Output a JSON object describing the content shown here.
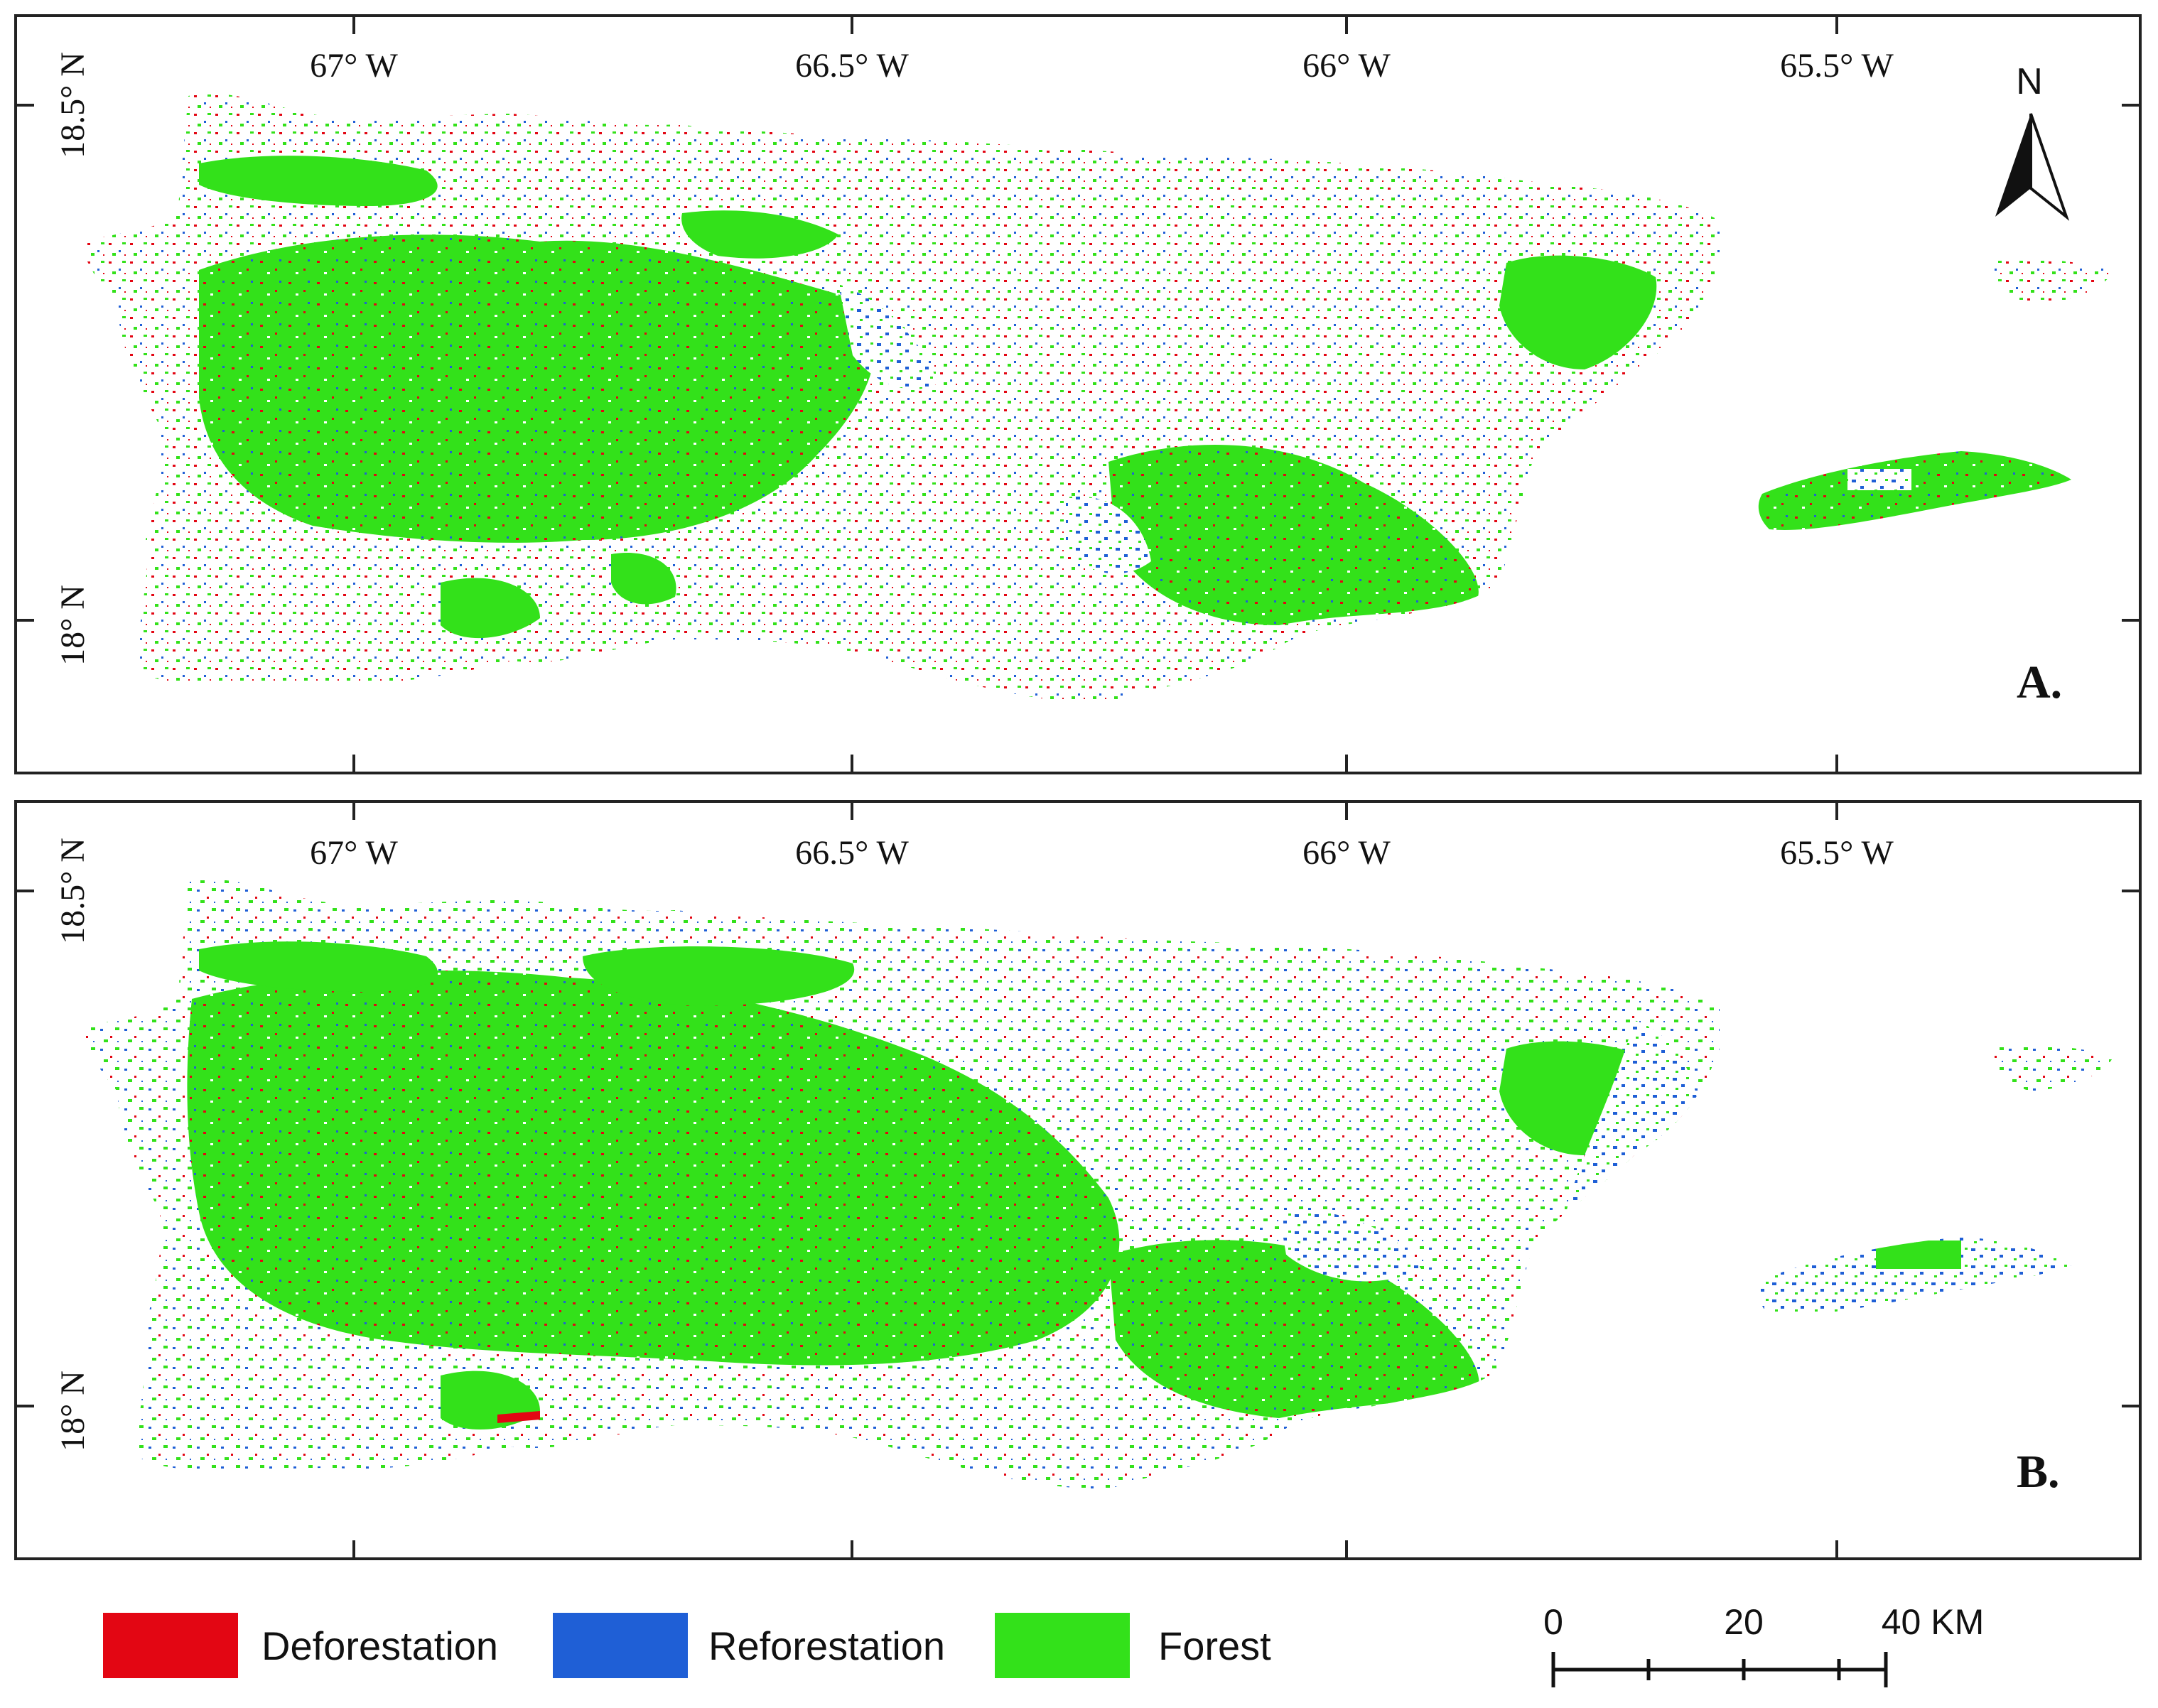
{
  "panels": [
    {
      "label": "A.",
      "lon_labels": [
        "67° W",
        "66.5° W",
        "66° W",
        "65.5° W"
      ],
      "lat_labels": [
        "18.5° N",
        "18° N"
      ],
      "north_label": "N"
    },
    {
      "label": "B.",
      "lon_labels": [
        "67° W",
        "66.5° W",
        "66° W",
        "65.5° W"
      ],
      "lat_labels": [
        "18.5° N",
        "18° N"
      ]
    }
  ],
  "legend": {
    "items": [
      {
        "label": "Deforestation",
        "color": "#e30613"
      },
      {
        "label": "Reforestation",
        "color": "#1f5fd6"
      },
      {
        "label": "Forest",
        "color": "#33e11a"
      }
    ]
  },
  "scale_bar": {
    "labels": [
      "0",
      "20",
      "40 KM"
    ]
  }
}
